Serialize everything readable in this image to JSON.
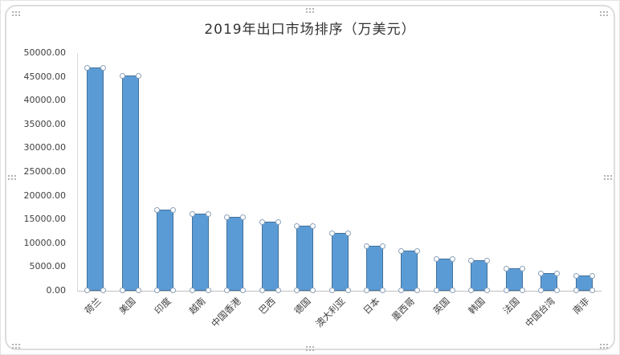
{
  "chart_data": {
    "type": "bar",
    "title": "2019年出口市场排序（万美元）",
    "categories": [
      "荷兰",
      "美国",
      "印度",
      "越南",
      "中国香港",
      "巴西",
      "德国",
      "澳大利亚",
      "日本",
      "墨西哥",
      "英国",
      "韩国",
      "法国",
      "中国台湾",
      "南非"
    ],
    "values": [
      47000,
      45200,
      17100,
      16300,
      15600,
      14500,
      13600,
      12100,
      9400,
      8500,
      6800,
      6400,
      4700,
      3700,
      3200
    ],
    "xlabel": "",
    "ylabel": "",
    "ylim": [
      0,
      50000
    ],
    "ytick_step": 5000,
    "ytick_labels": [
      "50000.00",
      "45000.00",
      "40000.00",
      "35000.00",
      "30000.00",
      "25000.00",
      "20000.00",
      "15000.00",
      "10000.00",
      "5000.00",
      "0.00"
    ],
    "grid": false,
    "legend_position": "none",
    "series_selected": true
  },
  "colors": {
    "bar_fill": "#5b9bd5",
    "bar_border": "#41719c",
    "handle_stroke": "#8aa0b8",
    "axis_line": "#bfbfbf",
    "axis_text": "#404040",
    "frame_border": "#dcdcdc"
  }
}
